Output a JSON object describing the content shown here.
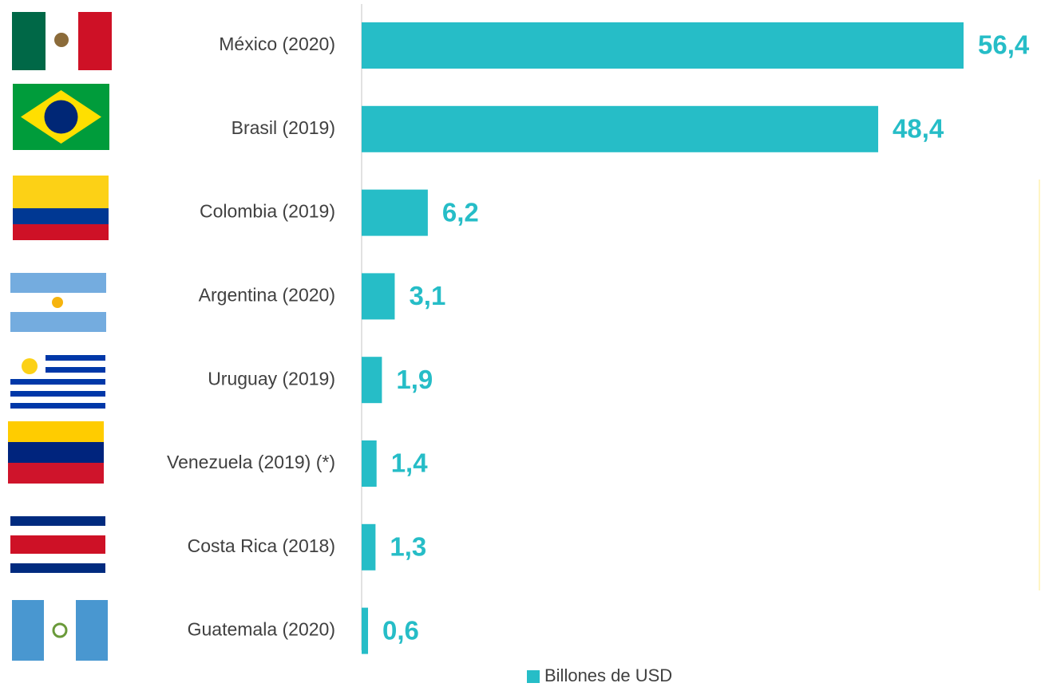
{
  "chart_data": {
    "type": "bar",
    "orientation": "horizontal",
    "categories": [
      "México (2020)",
      "Brasil (2019)",
      "Colombia (2019)",
      "Argentina (2020)",
      "Uruguay (2019)",
      "Venezuela (2019) (*)",
      "Costa Rica (2018)",
      "Guatemala (2020)"
    ],
    "series": [
      {
        "name": "Billones de USD",
        "color": "#26bdc7",
        "values": [
          56.4,
          48.4,
          6.2,
          3.1,
          1.9,
          1.4,
          1.3,
          0.6
        ],
        "value_labels": [
          "56,4",
          "48,4",
          "6,2",
          "3,1",
          "1,9",
          "1,4",
          "1,3",
          "0,6"
        ]
      }
    ],
    "legend": "bottom"
  }
}
